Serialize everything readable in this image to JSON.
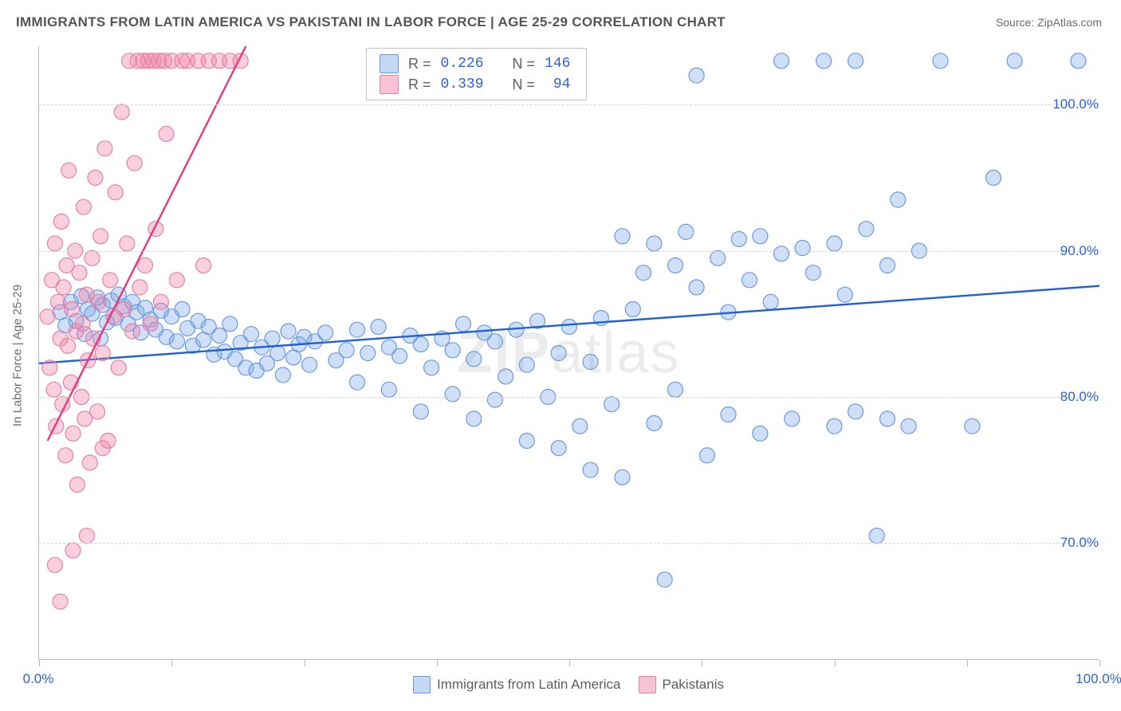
{
  "title": "IMMIGRANTS FROM LATIN AMERICA VS PAKISTANI IN LABOR FORCE | AGE 25-29 CORRELATION CHART",
  "source_label": "Source: ",
  "source_value": "ZipAtlas.com",
  "watermark_bold": "ZIP",
  "watermark_light": "atlas",
  "y_axis_title": "In Labor Force | Age 25-29",
  "chart": {
    "type": "scatter",
    "xlim": [
      0,
      100
    ],
    "ylim": [
      62,
      104
    ],
    "background_color": "#ffffff",
    "grid_color": "#d6d6d8",
    "axis_color": "#b8b8bb",
    "y_ticks": [
      70,
      80,
      90,
      100
    ],
    "y_tick_labels": [
      "70.0%",
      "80.0%",
      "90.0%",
      "100.0%"
    ],
    "x_minor_ticks": [
      0,
      12.5,
      25,
      37.5,
      50,
      62.5,
      75,
      87.5,
      100
    ],
    "x_tick_labels": [
      {
        "pos": 0,
        "label": "0.0%"
      },
      {
        "pos": 100,
        "label": "100.0%"
      }
    ],
    "tick_label_color": "#2c63d6",
    "tick_label_fontsize": 17,
    "marker_radius": 9.5,
    "marker_stroke_width": 1.2,
    "line_width": 2.4,
    "series": [
      {
        "name": "Immigrants from Latin America",
        "fill": "rgba(125,170,235,0.38)",
        "stroke": "#6a9ae0",
        "line_color": "#1f5fd8",
        "swatch_fill": "rgba(125,170,235,0.45)",
        "swatch_stroke": "#6a9ae0",
        "R": "0.226",
        "N": "146",
        "trend": {
          "x1": 0,
          "y1": 82.3,
          "x2": 100,
          "y2": 87.6
        },
        "points": [
          [
            2,
            85.8
          ],
          [
            2.5,
            84.9
          ],
          [
            3,
            86.5
          ],
          [
            3.5,
            85.2
          ],
          [
            4,
            86.9
          ],
          [
            4.3,
            84.3
          ],
          [
            4.6,
            86.0
          ],
          [
            5,
            85.7
          ],
          [
            5.5,
            86.8
          ],
          [
            5.8,
            84.0
          ],
          [
            6,
            86.3
          ],
          [
            6.4,
            85.1
          ],
          [
            6.8,
            86.6
          ],
          [
            7.2,
            85.4
          ],
          [
            7.5,
            87.0
          ],
          [
            8,
            86.2
          ],
          [
            8.4,
            85.0
          ],
          [
            8.8,
            86.5
          ],
          [
            9.2,
            85.8
          ],
          [
            9.6,
            84.4
          ],
          [
            10,
            86.1
          ],
          [
            10.5,
            85.3
          ],
          [
            11,
            84.6
          ],
          [
            11.5,
            85.9
          ],
          [
            12,
            84.1
          ],
          [
            12.5,
            85.5
          ],
          [
            13,
            83.8
          ],
          [
            13.5,
            86.0
          ],
          [
            14,
            84.7
          ],
          [
            14.5,
            83.5
          ],
          [
            15,
            85.2
          ],
          [
            15.5,
            83.9
          ],
          [
            16,
            84.8
          ],
          [
            16.5,
            82.9
          ],
          [
            17,
            84.2
          ],
          [
            17.5,
            83.1
          ],
          [
            18,
            85.0
          ],
          [
            18.5,
            82.6
          ],
          [
            19,
            83.7
          ],
          [
            19.5,
            82.0
          ],
          [
            20,
            84.3
          ],
          [
            20.5,
            81.8
          ],
          [
            21,
            83.4
          ],
          [
            21.5,
            82.3
          ],
          [
            22,
            84.0
          ],
          [
            22.5,
            83.0
          ],
          [
            23,
            81.5
          ],
          [
            23.5,
            84.5
          ],
          [
            24,
            82.7
          ],
          [
            24.5,
            83.6
          ],
          [
            25,
            84.1
          ],
          [
            25.5,
            82.2
          ],
          [
            26,
            83.8
          ],
          [
            27,
            84.4
          ],
          [
            28,
            82.5
          ],
          [
            29,
            83.2
          ],
          [
            30,
            81.0
          ],
          [
            30,
            84.6
          ],
          [
            31,
            83.0
          ],
          [
            32,
            84.8
          ],
          [
            33,
            80.5
          ],
          [
            33,
            83.4
          ],
          [
            34,
            82.8
          ],
          [
            35,
            84.2
          ],
          [
            36,
            79.0
          ],
          [
            36,
            83.6
          ],
          [
            37,
            82.0
          ],
          [
            38,
            84.0
          ],
          [
            39,
            80.2
          ],
          [
            39,
            83.2
          ],
          [
            40,
            85.0
          ],
          [
            41,
            78.5
          ],
          [
            41,
            82.6
          ],
          [
            42,
            84.4
          ],
          [
            43,
            79.8
          ],
          [
            43,
            83.8
          ],
          [
            44,
            81.4
          ],
          [
            45,
            84.6
          ],
          [
            46,
            77.0
          ],
          [
            46,
            82.2
          ],
          [
            47,
            85.2
          ],
          [
            48,
            80.0
          ],
          [
            49,
            76.5
          ],
          [
            49,
            83.0
          ],
          [
            50,
            84.8
          ],
          [
            51,
            78.0
          ],
          [
            52,
            75.0
          ],
          [
            52,
            82.4
          ],
          [
            53,
            85.4
          ],
          [
            54,
            79.5
          ],
          [
            55,
            91.0
          ],
          [
            55,
            74.5
          ],
          [
            56,
            86.0
          ],
          [
            57,
            88.5
          ],
          [
            58,
            90.5
          ],
          [
            58,
            78.2
          ],
          [
            59,
            67.5
          ],
          [
            60,
            89.0
          ],
          [
            60,
            80.5
          ],
          [
            61,
            91.3
          ],
          [
            62,
            87.5
          ],
          [
            62,
            102.0
          ],
          [
            63,
            76.0
          ],
          [
            64,
            89.5
          ],
          [
            65,
            85.8
          ],
          [
            65,
            78.8
          ],
          [
            66,
            90.8
          ],
          [
            67,
            88.0
          ],
          [
            68,
            77.5
          ],
          [
            68,
            91.0
          ],
          [
            69,
            86.5
          ],
          [
            70,
            103.0
          ],
          [
            70,
            89.8
          ],
          [
            71,
            78.5
          ],
          [
            72,
            90.2
          ],
          [
            73,
            88.5
          ],
          [
            74,
            103.0
          ],
          [
            75,
            78.0
          ],
          [
            75,
            90.5
          ],
          [
            76,
            87.0
          ],
          [
            77,
            103.0
          ],
          [
            77,
            79.0
          ],
          [
            78,
            91.5
          ],
          [
            79,
            70.5
          ],
          [
            80,
            78.5
          ],
          [
            80,
            89.0
          ],
          [
            81,
            93.5
          ],
          [
            82,
            78.0
          ],
          [
            83,
            90.0
          ],
          [
            85,
            103.0
          ],
          [
            88,
            78.0
          ],
          [
            90,
            95.0
          ],
          [
            92,
            103.0
          ],
          [
            98,
            103.0
          ]
        ]
      },
      {
        "name": "Pakistanis",
        "fill": "rgba(240,130,165,0.38)",
        "stroke": "#e781a4",
        "line_color": "#e23b7a",
        "swatch_fill": "rgba(240,130,165,0.48)",
        "swatch_stroke": "#e781a4",
        "R": "0.339",
        "N": " 94",
        "trend": {
          "x1": 0.8,
          "y1": 77.0,
          "x2": 19.5,
          "y2": 104
        },
        "points": [
          [
            0.8,
            85.5
          ],
          [
            1.0,
            82.0
          ],
          [
            1.2,
            88.0
          ],
          [
            1.4,
            80.5
          ],
          [
            1.5,
            90.5
          ],
          [
            1.6,
            78.0
          ],
          [
            1.8,
            86.5
          ],
          [
            2.0,
            84.0
          ],
          [
            2.1,
            92.0
          ],
          [
            2.2,
            79.5
          ],
          [
            2.3,
            87.5
          ],
          [
            2.5,
            76.0
          ],
          [
            2.6,
            89.0
          ],
          [
            2.7,
            83.5
          ],
          [
            2.8,
            95.5
          ],
          [
            3.0,
            81.0
          ],
          [
            3.1,
            86.0
          ],
          [
            3.2,
            77.5
          ],
          [
            3.4,
            90.0
          ],
          [
            3.5,
            84.5
          ],
          [
            3.6,
            74.0
          ],
          [
            3.8,
            88.5
          ],
          [
            4.0,
            80.0
          ],
          [
            4.1,
            85.0
          ],
          [
            4.2,
            93.0
          ],
          [
            4.3,
            78.5
          ],
          [
            4.5,
            87.0
          ],
          [
            4.6,
            82.5
          ],
          [
            4.8,
            75.5
          ],
          [
            5.0,
            89.5
          ],
          [
            5.1,
            84.0
          ],
          [
            5.3,
            95.0
          ],
          [
            5.5,
            79.0
          ],
          [
            5.6,
            86.5
          ],
          [
            5.8,
            91.0
          ],
          [
            6.0,
            83.0
          ],
          [
            6.2,
            97.0
          ],
          [
            6.5,
            77.0
          ],
          [
            6.7,
            88.0
          ],
          [
            7.0,
            85.5
          ],
          [
            7.2,
            94.0
          ],
          [
            7.5,
            82.0
          ],
          [
            7.8,
            99.5
          ],
          [
            8.0,
            86.0
          ],
          [
            8.3,
            90.5
          ],
          [
            8.5,
            103.0
          ],
          [
            8.8,
            84.5
          ],
          [
            9.0,
            96.0
          ],
          [
            9.3,
            103.0
          ],
          [
            9.5,
            87.5
          ],
          [
            9.8,
            103.0
          ],
          [
            10.0,
            89.0
          ],
          [
            10.3,
            103.0
          ],
          [
            10.5,
            85.0
          ],
          [
            10.8,
            103.0
          ],
          [
            11.0,
            91.5
          ],
          [
            11.3,
            103.0
          ],
          [
            11.5,
            86.5
          ],
          [
            11.8,
            103.0
          ],
          [
            12.0,
            98.0
          ],
          [
            12.5,
            103.0
          ],
          [
            13.0,
            88.0
          ],
          [
            13.5,
            103.0
          ],
          [
            14.0,
            103.0
          ],
          [
            15.0,
            103.0
          ],
          [
            15.5,
            89.0
          ],
          [
            16.0,
            103.0
          ],
          [
            17.0,
            103.0
          ],
          [
            18.0,
            103.0
          ],
          [
            19.0,
            103.0
          ],
          [
            1.5,
            68.5
          ],
          [
            2.0,
            66.0
          ],
          [
            3.2,
            69.5
          ],
          [
            6.0,
            76.5
          ],
          [
            4.5,
            70.5
          ]
        ]
      }
    ]
  },
  "legend_stats_label_r": "R =",
  "legend_stats_label_n": "N =",
  "bottom_legend": [
    {
      "label": "Immigrants from Latin America",
      "series": 0
    },
    {
      "label": "Pakistanis",
      "series": 1
    }
  ]
}
